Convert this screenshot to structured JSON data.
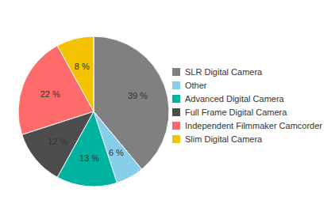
{
  "chart_data": {
    "type": "pie",
    "categories": [
      "SLR Digital Camera",
      "Other",
      "Advanced Digital Camera",
      "Full Frame Digital Camera",
      "Independent Filmmaker Camcorder",
      "Slim Digital Camera"
    ],
    "values": [
      39,
      6,
      13,
      12,
      22,
      8
    ],
    "value_labels": [
      "39 %",
      "6 %",
      "13 %",
      "12 %",
      "22 %",
      "8 %"
    ],
    "colors": [
      "#808080",
      "#87CEEB",
      "#00B2A0",
      "#4D4D4D",
      "#FF6B6B",
      "#F5C400"
    ],
    "data_labels": true,
    "legend": "right"
  }
}
